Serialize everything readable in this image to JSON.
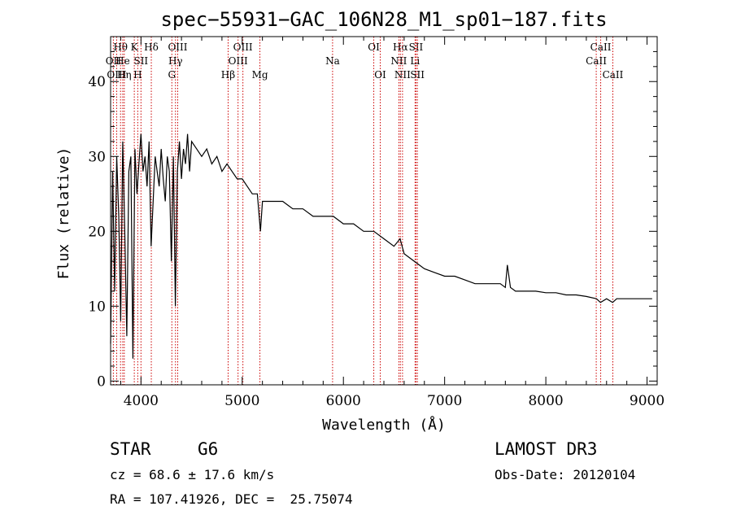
{
  "chart_data": {
    "type": "line",
    "title": "spec−55931−GAC_106N28_M1_sp01−187.fits",
    "xlabel": "Wavelength (Å)",
    "ylabel": "Flux (relative)",
    "xlim": [
      3700,
      9100
    ],
    "ylim": [
      -0.5,
      46
    ],
    "xticks": [
      4000,
      5000,
      6000,
      7000,
      8000,
      9000
    ],
    "xtick_labels": [
      "4000",
      "5000",
      "6000",
      "7000",
      "8000",
      "9000"
    ],
    "yticks": [
      0,
      10,
      20,
      30,
      40
    ],
    "ytick_labels": [
      "0",
      "10",
      "20",
      "30",
      "40"
    ],
    "grid": false,
    "series": [
      {
        "name": "spectrum",
        "x": [
          3700,
          3720,
          3740,
          3760,
          3780,
          3800,
          3820,
          3840,
          3860,
          3880,
          3900,
          3920,
          3940,
          3960,
          3980,
          4000,
          4020,
          4040,
          4060,
          4080,
          4100,
          4120,
          4140,
          4160,
          4180,
          4200,
          4220,
          4240,
          4260,
          4280,
          4300,
          4320,
          4340,
          4360,
          4380,
          4400,
          4420,
          4440,
          4460,
          4480,
          4500,
          4550,
          4600,
          4650,
          4700,
          4750,
          4800,
          4850,
          4900,
          4950,
          5000,
          5050,
          5100,
          5150,
          5180,
          5200,
          5250,
          5300,
          5400,
          5500,
          5600,
          5700,
          5800,
          5900,
          6000,
          6100,
          6200,
          6300,
          6400,
          6500,
          6560,
          6600,
          6700,
          6800,
          6900,
          7000,
          7100,
          7200,
          7300,
          7400,
          7500,
          7550,
          7600,
          7620,
          7650,
          7700,
          7800,
          7900,
          8000,
          8100,
          8200,
          8300,
          8400,
          8500,
          8540,
          8600,
          8660,
          8700,
          8800,
          8900,
          9000,
          9050
        ],
        "values": [
          5,
          28,
          12,
          30,
          22,
          8,
          32,
          20,
          6,
          28,
          30,
          3,
          31,
          25,
          29,
          33,
          28,
          30,
          26,
          32,
          18,
          24,
          30,
          28,
          26,
          31,
          27,
          24,
          30,
          28,
          16,
          30,
          10,
          28,
          32,
          27,
          31,
          29,
          33,
          28,
          32,
          31,
          30,
          31,
          29,
          30,
          28,
          29,
          28,
          27,
          27,
          26,
          25,
          25,
          20,
          24,
          24,
          24,
          24,
          23,
          23,
          22,
          22,
          22,
          21,
          21,
          20,
          20,
          19,
          18,
          19,
          17,
          16,
          15,
          14.5,
          14,
          14,
          13.5,
          13,
          13,
          13,
          13,
          12.5,
          15.5,
          12.5,
          12,
          12,
          12,
          11.8,
          11.8,
          11.5,
          11.5,
          11.3,
          11,
          10.5,
          11,
          10.5,
          11,
          11,
          11,
          11,
          11
        ]
      }
    ],
    "line_markers": [
      {
        "label": "Hθ",
        "x": 3798,
        "row": 1
      },
      {
        "label": "OII",
        "x": 3727,
        "row": 2
      },
      {
        "label": "OIII",
        "x": 3760,
        "row": 3
      },
      {
        "label": "He",
        "x": 3820,
        "row": 2
      },
      {
        "label": "Hη",
        "x": 3835,
        "row": 3
      },
      {
        "label": "K",
        "x": 3934,
        "row": 1
      },
      {
        "label": "SII",
        "x": 4000,
        "row": 2
      },
      {
        "label": "H",
        "x": 3968,
        "row": 3
      },
      {
        "label": "Hδ",
        "x": 4102,
        "row": 1
      },
      {
        "label": "OIII",
        "x": 4363,
        "row": 1
      },
      {
        "label": "Hγ",
        "x": 4341,
        "row": 2
      },
      {
        "label": "G",
        "x": 4305,
        "row": 3
      },
      {
        "label": "Hβ",
        "x": 4861,
        "row": 3
      },
      {
        "label": "OIII",
        "x": 5007,
        "row": 1
      },
      {
        "label": "OIII",
        "x": 4959,
        "row": 2
      },
      {
        "label": "Mg",
        "x": 5175,
        "row": 3
      },
      {
        "label": "Na",
        "x": 5893,
        "row": 2
      },
      {
        "label": "OI",
        "x": 6300,
        "row": 1
      },
      {
        "label": "OI",
        "x": 6364,
        "row": 3
      },
      {
        "label": "Hα",
        "x": 6563,
        "row": 1
      },
      {
        "label": "NII",
        "x": 6548,
        "row": 2
      },
      {
        "label": "NII",
        "x": 6584,
        "row": 3
      },
      {
        "label": "SII",
        "x": 6717,
        "row": 1
      },
      {
        "label": "Li",
        "x": 6708,
        "row": 2
      },
      {
        "label": "SII",
        "x": 6731,
        "row": 3
      },
      {
        "label": "CaII",
        "x": 8542,
        "row": 1
      },
      {
        "label": "CaII",
        "x": 8498,
        "row": 2
      },
      {
        "label": "CaII",
        "x": 8662,
        "row": 3
      }
    ]
  },
  "info": {
    "class": "STAR",
    "subclass": "G6",
    "survey": "LAMOST DR3",
    "cz": "cz = 68.6 ± 17.6 km/s",
    "obs_date": "Obs-Date: 20120104",
    "coords": "RA = 107.41926, DEC =  25.75074"
  }
}
